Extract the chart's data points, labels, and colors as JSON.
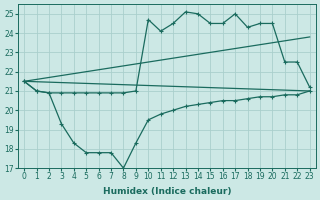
{
  "xlabel": "Humidex (Indice chaleur)",
  "xlim": [
    -0.5,
    23.5
  ],
  "ylim": [
    17,
    25.5
  ],
  "yticks": [
    17,
    18,
    19,
    20,
    21,
    22,
    23,
    24,
    25
  ],
  "xticks": [
    0,
    1,
    2,
    3,
    4,
    5,
    6,
    7,
    8,
    9,
    10,
    11,
    12,
    13,
    14,
    15,
    16,
    17,
    18,
    19,
    20,
    21,
    22,
    23
  ],
  "bg_color": "#cce8e5",
  "grid_color": "#aacfcc",
  "line_color": "#1a6b5e",
  "line1_x": [
    0,
    1,
    2,
    3,
    4,
    5,
    6,
    7,
    8,
    9,
    10,
    11,
    12,
    13,
    14,
    15,
    16,
    17,
    18,
    19,
    20,
    21,
    22,
    23
  ],
  "line1_y": [
    21.5,
    21.0,
    20.9,
    20.9,
    20.9,
    20.9,
    20.9,
    20.9,
    20.9,
    21.0,
    24.7,
    24.1,
    24.5,
    25.1,
    25.0,
    24.5,
    24.5,
    25.0,
    24.3,
    24.5,
    24.5,
    22.5,
    22.5,
    21.2
  ],
  "line2_x": [
    0,
    23
  ],
  "line2_y": [
    21.5,
    23.8
  ],
  "line3_x": [
    0,
    23
  ],
  "line3_y": [
    21.5,
    21.0
  ],
  "line4_x": [
    0,
    1,
    2,
    3,
    4,
    5,
    6,
    7,
    8,
    9,
    10,
    11,
    12,
    13,
    14,
    15,
    16,
    17,
    18,
    19,
    20,
    21,
    22,
    23
  ],
  "line4_y": [
    21.5,
    21.0,
    20.9,
    19.3,
    18.3,
    17.8,
    17.8,
    17.8,
    17.0,
    18.3,
    19.5,
    19.8,
    20.0,
    20.2,
    20.3,
    20.4,
    20.5,
    20.5,
    20.6,
    20.7,
    20.7,
    20.8,
    20.8,
    21.0
  ]
}
